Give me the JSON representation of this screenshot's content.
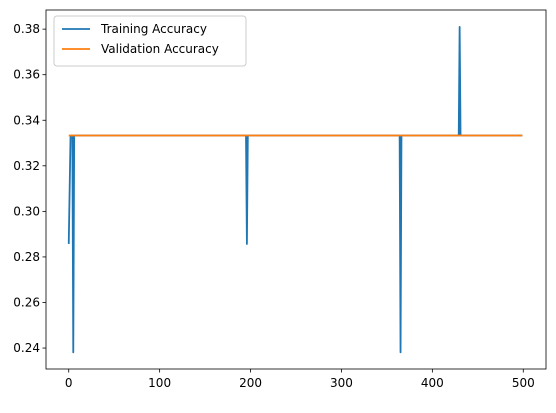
{
  "chart_data": {
    "type": "line",
    "title": "",
    "xlabel": "",
    "ylabel": "",
    "xlim": [
      -25,
      525
    ],
    "ylim": [
      0.2308,
      0.3884
    ],
    "x_ticks": [
      0,
      100,
      200,
      300,
      400,
      500
    ],
    "y_ticks": [
      0.24,
      0.26,
      0.28,
      0.3,
      0.32,
      0.34,
      0.36,
      0.38
    ],
    "y_tick_labels": [
      "0.24",
      "0.26",
      "0.28",
      "0.30",
      "0.32",
      "0.34",
      "0.36",
      "0.38"
    ],
    "grid": false,
    "legend": {
      "placement": "top-left"
    },
    "series": [
      {
        "name": "Training Accuracy",
        "color": "#1f77b4",
        "points": [
          [
            0,
            0.2857
          ],
          [
            2,
            0.3333
          ],
          [
            4,
            0.3333
          ],
          [
            5,
            0.2381
          ],
          [
            6,
            0.3333
          ],
          [
            195,
            0.3333
          ],
          [
            196,
            0.2857
          ],
          [
            197,
            0.3333
          ],
          [
            364,
            0.3333
          ],
          [
            365,
            0.2381
          ],
          [
            366,
            0.3333
          ],
          [
            429,
            0.3333
          ],
          [
            430,
            0.381
          ],
          [
            431,
            0.3333
          ],
          [
            499,
            0.3333
          ]
        ]
      },
      {
        "name": "Validation Accuracy",
        "color": "#ff7f0e",
        "points": [
          [
            0,
            0.3333
          ],
          [
            499,
            0.3333
          ]
        ]
      }
    ]
  }
}
